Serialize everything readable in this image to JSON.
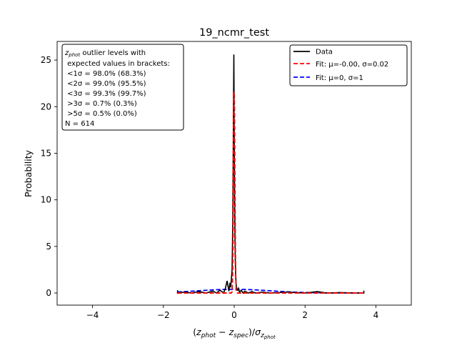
{
  "chart_data": {
    "type": "line",
    "title": "19_ncmr_test",
    "xlabel": "(z_phot − z_spec)/σ_z_phot",
    "ylabel": "Probability",
    "xlim": [
      -5,
      5
    ],
    "ylim": [
      -1.3,
      27
    ],
    "xticks": [
      -4,
      -2,
      0,
      2,
      4
    ],
    "yticks": [
      0,
      5,
      10,
      15,
      20,
      25
    ],
    "xtick_labels": [
      "−4",
      "−2",
      "0",
      "2",
      "4"
    ],
    "ytick_labels": [
      "0",
      "5",
      "10",
      "15",
      "20",
      "25"
    ],
    "grid": false,
    "legend_position": "top-right",
    "series": [
      {
        "name": "Data",
        "color": "#000000",
        "style": "solid",
        "x": [
          -1.6,
          -1.6,
          -1.4,
          -1.2,
          -1.0,
          -0.8,
          -0.6,
          -0.5,
          -0.4,
          -0.3,
          -0.25,
          -0.2,
          -0.15,
          -0.12,
          -0.1,
          -0.08,
          -0.06,
          -0.05,
          -0.04,
          -0.03,
          -0.02,
          -0.01,
          0.0,
          0.01,
          0.02,
          0.03,
          0.04,
          0.05,
          0.06,
          0.08,
          0.1,
          0.12,
          0.15,
          0.2,
          0.25,
          0.3,
          0.4,
          0.5,
          0.6,
          0.8,
          1.0,
          1.5,
          2.0,
          2.35,
          2.6,
          3.0,
          3.4,
          3.66,
          3.66
        ],
        "y": [
          0.3,
          0.0,
          0.1,
          0.0,
          0.15,
          0.0,
          0.2,
          0.0,
          0.3,
          0.0,
          0.5,
          1.3,
          0.2,
          1.1,
          0.6,
          1.5,
          2.5,
          5.0,
          8.0,
          14.0,
          20.0,
          25.6,
          18.0,
          11.0,
          6.0,
          3.5,
          2.0,
          1.2,
          0.7,
          0.4,
          0.3,
          0.5,
          0.1,
          0.3,
          0.0,
          0.2,
          0.0,
          0.15,
          0.0,
          0.1,
          0.0,
          0.1,
          0.0,
          0.15,
          0.0,
          0.05,
          0.0,
          0.0,
          0.25
        ]
      },
      {
        "name": "Fit: μ=-0.00, σ=0.02",
        "color": "#ff0000",
        "style": "dashed",
        "mu": -0.0,
        "sigma": 0.02,
        "x_range": [
          -1.6,
          3.66
        ],
        "peak": 21.6
      },
      {
        "name": "Fit: μ=0, σ=1",
        "color": "#0000ff",
        "style": "dashed",
        "mu": 0,
        "sigma": 1,
        "x_range": [
          -1.6,
          3.66
        ],
        "peak": 0.399
      }
    ],
    "annotation": {
      "lines": [
        "z_phot outlier levels with",
        " expected values in brackets:",
        " <1σ = 98.0% (68.3%)",
        " <2σ = 99.0% (95.5%)",
        " <3σ = 99.3% (99.7%)",
        " >3σ = 0.7% (0.3%)",
        " >5σ = 0.5% (0.0%)",
        "N = 614"
      ]
    }
  }
}
